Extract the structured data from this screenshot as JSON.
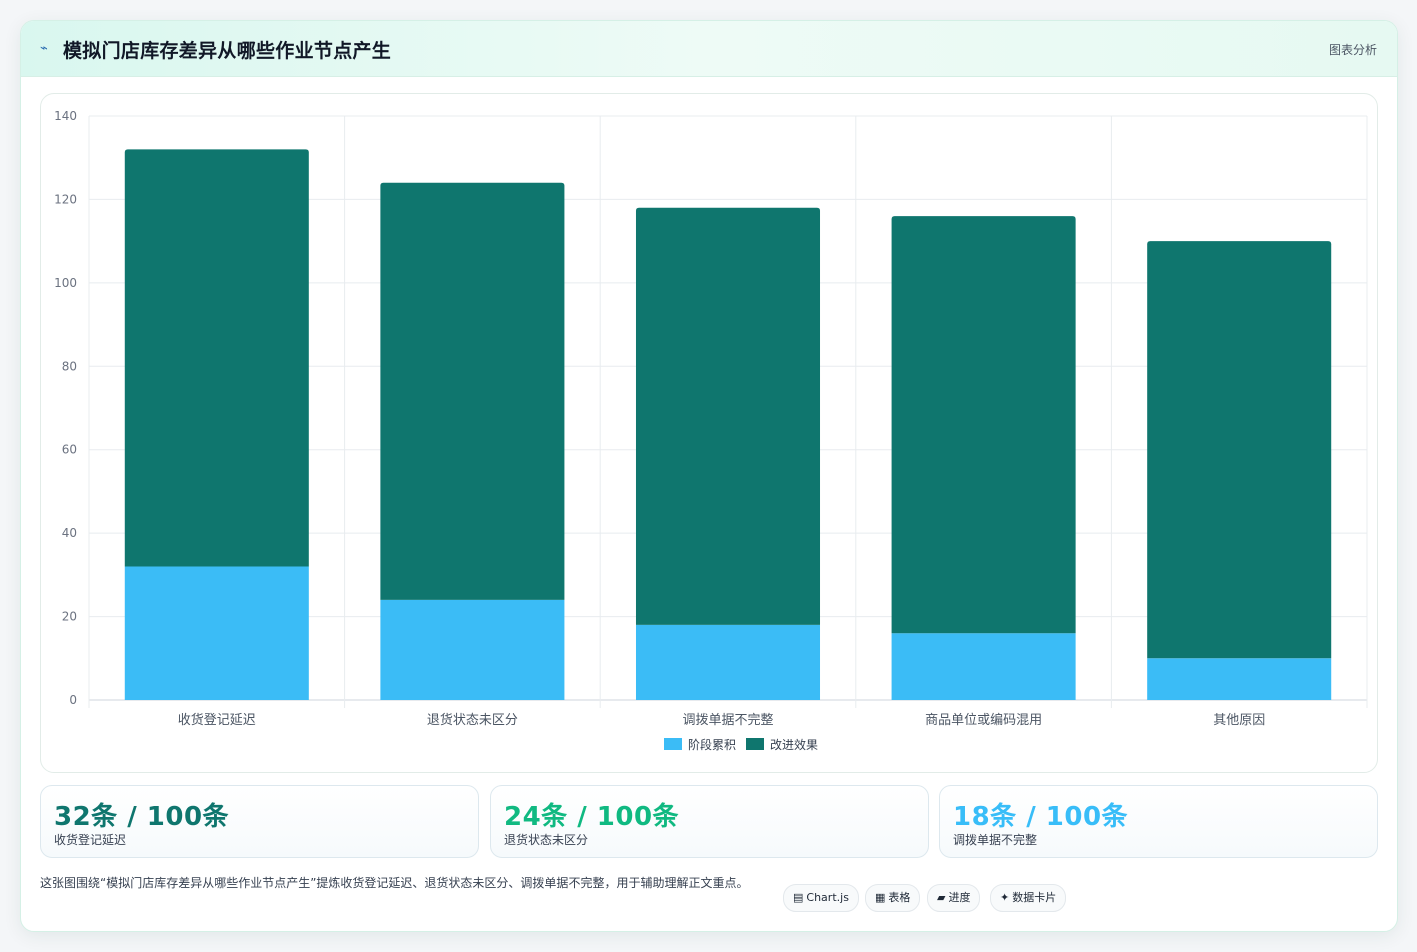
{
  "header": {
    "icon": "chart-line-icon",
    "title": "模拟门店库存差异从哪些作业节点产生",
    "tag": "图表分析"
  },
  "colors": {
    "series_a": "#3bbcf6",
    "series_b": "#0f766e",
    "stat1": "#0f766e",
    "stat2": "#10b981",
    "stat3": "#38bdf8"
  },
  "chart_data": {
    "type": "bar",
    "stacked": true,
    "categories": [
      "收货登记延迟",
      "退货状态未区分",
      "调拨单据不完整",
      "商品单位或编码混用",
      "其他原因"
    ],
    "series": [
      {
        "name": "阶段累积",
        "values": [
          32,
          24,
          18,
          16,
          10
        ]
      },
      {
        "name": "改进效果",
        "values": [
          100,
          100,
          100,
          100,
          100
        ]
      }
    ],
    "ylim": [
      0,
      140
    ],
    "yticks": [
      0,
      20,
      40,
      60,
      80,
      100,
      120,
      140
    ],
    "grid": true,
    "legend": "bottom"
  },
  "stats": [
    {
      "value": "32条 / 100条",
      "label": "收货登记延迟"
    },
    {
      "value": "24条 / 100条",
      "label": "退货状态未区分"
    },
    {
      "value": "18条 / 100条",
      "label": "调拨单据不完整"
    }
  ],
  "footnote": "这张图围绕“模拟门店库存差异从哪些作业节点产生”提炼收货登记延迟、退货状态未区分、调拨单据不完整，用于辅助理解正文重点。",
  "tags": [
    {
      "icon": "table-icon",
      "glyph": "▤",
      "label": "Chart.js"
    },
    {
      "icon": "grid-icon",
      "glyph": "▦",
      "label": "表格"
    },
    {
      "icon": "progress-icon",
      "glyph": "▰",
      "label": "进度"
    },
    {
      "icon": "sparkle-icon",
      "glyph": "✦",
      "label": "数据卡片"
    }
  ]
}
